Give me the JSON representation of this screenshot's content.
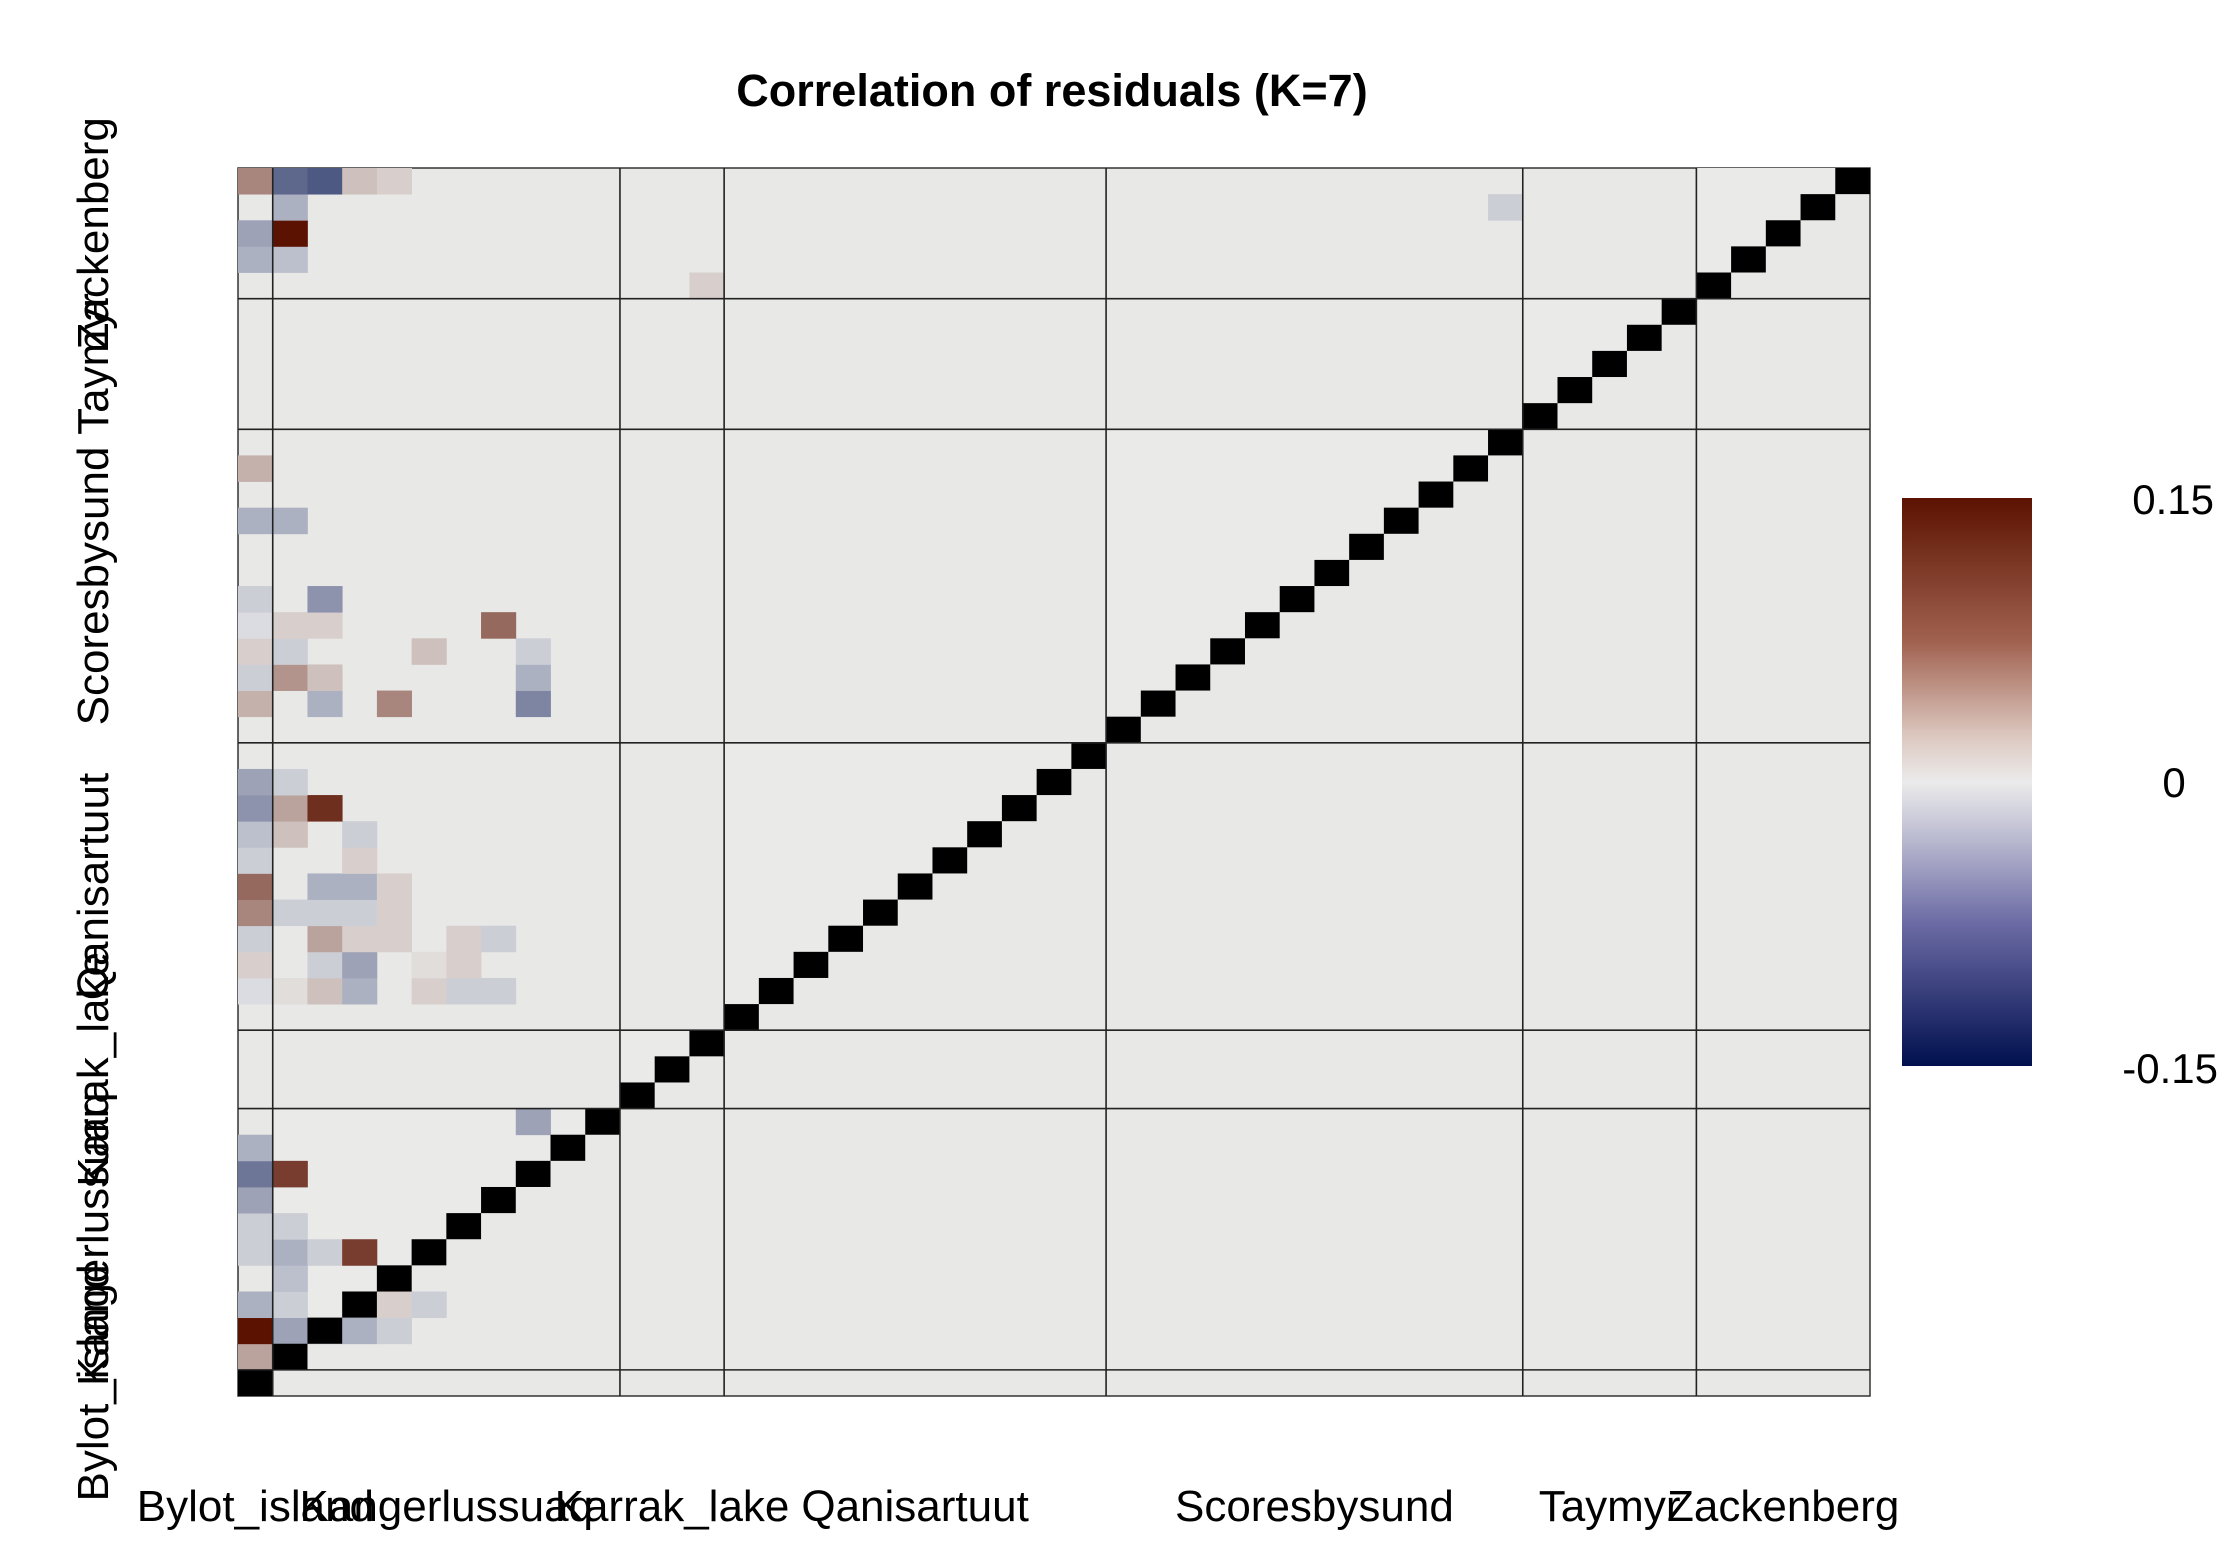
{
  "chart_data": {
    "type": "heatmap",
    "title": "Correlation of residuals (K=7)",
    "xlabel": "",
    "ylabel": "",
    "n_species": 47,
    "groups": [
      {
        "name": "Bylot_island",
        "start": 0,
        "end": 1
      },
      {
        "name": "Kangerlussuaq",
        "start": 1,
        "end": 11
      },
      {
        "name": "Karrak_lake",
        "start": 11,
        "end": 14
      },
      {
        "name": "Qanisartuut",
        "start": 14,
        "end": 25
      },
      {
        "name": "Scoresbysund",
        "start": 25,
        "end": 37
      },
      {
        "name": "Taymyr",
        "start": 37,
        "end": 42
      },
      {
        "name": "Zackenberg",
        "start": 42,
        "end": 47
      }
    ],
    "background_value": 0,
    "diagonal_value": 1,
    "colorscale": {
      "min": -0.15,
      "max": 0.15,
      "ticks": [
        "0.15",
        "0",
        "-0.15"
      ],
      "low_color": "#00104f",
      "mid_color": "#ebebeb",
      "high_color": "#5c1200",
      "background_color": "#e8e9e7",
      "diagonal_color": "#000000"
    },
    "cells": [
      [
        1,
        0,
        0.05
      ],
      [
        1,
        1,
        0.02
      ],
      [
        2,
        0,
        0.15
      ],
      [
        2,
        1,
        -0.05
      ],
      [
        2,
        2,
        -0.04
      ],
      [
        2,
        3,
        -0.04
      ],
      [
        2,
        4,
        -0.02
      ],
      [
        3,
        0,
        -0.04
      ],
      [
        3,
        1,
        -0.02
      ],
      [
        3,
        4,
        0.02
      ],
      [
        3,
        5,
        -0.02
      ],
      [
        4,
        1,
        -0.03
      ],
      [
        4,
        4,
        0.04
      ],
      [
        5,
        0,
        -0.02
      ],
      [
        5,
        1,
        -0.04
      ],
      [
        5,
        2,
        -0.02
      ],
      [
        5,
        3,
        0.12
      ],
      [
        6,
        0,
        -0.02
      ],
      [
        6,
        1,
        -0.02
      ],
      [
        7,
        0,
        -0.05
      ],
      [
        8,
        0,
        -0.08
      ],
      [
        8,
        1,
        0.12
      ],
      [
        9,
        0,
        -0.04
      ],
      [
        10,
        8,
        -0.05
      ],
      [
        15,
        0,
        -0.01
      ],
      [
        15,
        1,
        0.01
      ],
      [
        15,
        2,
        0.03
      ],
      [
        15,
        3,
        -0.04
      ],
      [
        15,
        5,
        0.02
      ],
      [
        15,
        6,
        -0.02
      ],
      [
        15,
        7,
        -0.02
      ],
      [
        16,
        0,
        0.02
      ],
      [
        16,
        2,
        -0.02
      ],
      [
        16,
        3,
        -0.05
      ],
      [
        16,
        5,
        0.01
      ],
      [
        16,
        6,
        0.02
      ],
      [
        17,
        0,
        -0.02
      ],
      [
        17,
        2,
        0.05
      ],
      [
        17,
        3,
        0.02
      ],
      [
        17,
        4,
        0.02
      ],
      [
        17,
        6,
        0.02
      ],
      [
        17,
        7,
        -0.02
      ],
      [
        18,
        0,
        0.07
      ],
      [
        18,
        1,
        -0.02
      ],
      [
        18,
        2,
        -0.02
      ],
      [
        18,
        3,
        -0.02
      ],
      [
        18,
        4,
        0.02
      ],
      [
        19,
        0,
        0.09
      ],
      [
        19,
        2,
        -0.04
      ],
      [
        19,
        3,
        -0.04
      ],
      [
        19,
        4,
        0.02
      ],
      [
        20,
        0,
        -0.02
      ],
      [
        20,
        3,
        0.02
      ],
      [
        21,
        0,
        -0.03
      ],
      [
        21,
        1,
        0.03
      ],
      [
        21,
        3,
        -0.02
      ],
      [
        22,
        0,
        -0.06
      ],
      [
        22,
        1,
        0.05
      ],
      [
        22,
        2,
        0.13
      ],
      [
        23,
        0,
        -0.05
      ],
      [
        23,
        1,
        -0.02
      ],
      [
        26,
        0,
        0.04
      ],
      [
        26,
        2,
        -0.04
      ],
      [
        26,
        4,
        0.07
      ],
      [
        26,
        8,
        -0.07
      ],
      [
        27,
        0,
        -0.02
      ],
      [
        27,
        1,
        0.06
      ],
      [
        27,
        2,
        0.03
      ],
      [
        27,
        8,
        -0.04
      ],
      [
        28,
        0,
        0.02
      ],
      [
        28,
        1,
        -0.02
      ],
      [
        28,
        5,
        0.03
      ],
      [
        28,
        8,
        -0.02
      ],
      [
        29,
        0,
        -0.01
      ],
      [
        29,
        1,
        0.02
      ],
      [
        29,
        2,
        0.02
      ],
      [
        29,
        7,
        0.09
      ],
      [
        30,
        0,
        -0.02
      ],
      [
        30,
        2,
        -0.06
      ],
      [
        33,
        0,
        -0.04
      ],
      [
        33,
        1,
        -0.04
      ],
      [
        35,
        0,
        0.04
      ],
      [
        43,
        0,
        -0.04
      ],
      [
        43,
        1,
        -0.03
      ],
      [
        44,
        0,
        -0.05
      ],
      [
        44,
        1,
        0.15
      ],
      [
        45,
        1,
        -0.04
      ],
      [
        46,
        0,
        0.07
      ],
      [
        46,
        1,
        -0.09
      ],
      [
        46,
        2,
        -0.1
      ],
      [
        46,
        3,
        0.03
      ],
      [
        46,
        4,
        0.02
      ],
      [
        45,
        36,
        -0.02
      ],
      [
        42,
        13,
        0.02
      ]
    ]
  }
}
